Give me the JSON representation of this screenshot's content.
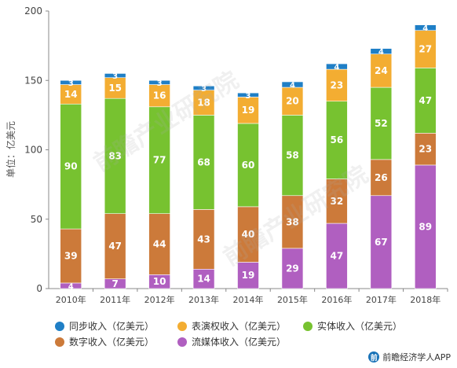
{
  "chart_data": {
    "type": "bar",
    "stacked": true,
    "ylabel": "单位：亿美元",
    "ylim": [
      0,
      200
    ],
    "yticks": [
      0,
      50,
      100,
      150,
      200
    ],
    "categories": [
      "2010年",
      "2011年",
      "2012年",
      "2013年",
      "2014年",
      "2015年",
      "2016年",
      "2017年",
      "2018年"
    ],
    "series": [
      {
        "name": "流媒体收入（亿美元）",
        "color": "#b05fc0",
        "values": [
          4,
          7,
          10,
          14,
          19,
          29,
          47,
          67,
          89
        ]
      },
      {
        "name": "数字收入（亿美元）",
        "color": "#cc7a3a",
        "values": [
          39,
          47,
          44,
          43,
          40,
          38,
          32,
          26,
          23
        ]
      },
      {
        "name": "实体收入（亿美元）",
        "color": "#77c230",
        "values": [
          90,
          83,
          77,
          68,
          60,
          58,
          56,
          52,
          47
        ]
      },
      {
        "name": "表演权收入（亿美元）",
        "color": "#f3ad32",
        "values": [
          14,
          15,
          16,
          18,
          19,
          20,
          23,
          24,
          27
        ]
      },
      {
        "name": "同步收入（亿美元）",
        "color": "#1f7fc6",
        "values": [
          3,
          3,
          3,
          3,
          3,
          4,
          4,
          4,
          4
        ]
      }
    ],
    "legend_position": "bottom",
    "grid": false
  },
  "legend": [
    {
      "label": "同步收入（亿美元）",
      "color": "#1f7fc6"
    },
    {
      "label": "表演权收入（亿美元）",
      "color": "#f3ad32"
    },
    {
      "label": "实体收入（亿美元）",
      "color": "#77c230"
    },
    {
      "label": "数字收入（亿美元）",
      "color": "#cc7a3a"
    },
    {
      "label": "流媒体收入（亿美元）",
      "color": "#b05fc0"
    }
  ],
  "watermark": "前瞻产业研究院",
  "footer": {
    "text": "前瞻经济学人APP"
  }
}
